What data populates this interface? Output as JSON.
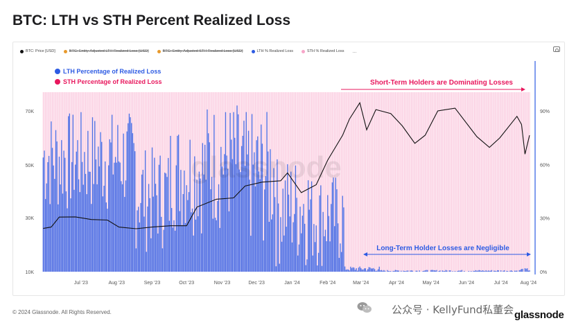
{
  "title": "BTC: LTH vs STH Percent Realized Loss",
  "legend_items": [
    {
      "label": "BTC: Price [USD]",
      "color": "#111111",
      "disabled": false
    },
    {
      "label": "BTC: Entity-Adjusted LTH Realized Loss [USD]",
      "color": "#e89a2c",
      "disabled": true
    },
    {
      "label": "BTC: Entity-Adjusted STH Realized Loss [USD]",
      "color": "#e89a2c",
      "disabled": true
    },
    {
      "label": "LTH % Realized Loss",
      "color": "#2d5be3",
      "disabled": false
    },
    {
      "label": "STH % Realized Loss",
      "color": "#f7a6c9",
      "disabled": false
    }
  ],
  "more_label": "...",
  "inner_legend": [
    {
      "label": "LTH Percentage of Realized Loss",
      "color": "#2d5be3"
    },
    {
      "label": "STH Percentage of Realized Loss",
      "color": "#e8175d"
    }
  ],
  "annotations": {
    "sth": "Short-Term Holders are Dominating Losses",
    "lth": "Long-Term Holder Losses are Negligible"
  },
  "watermark": "glassnode",
  "footer": {
    "copyright": "© 2024 Glassnode. All Rights Reserved.",
    "wechat": "公众号 · KellyFund私董会",
    "logo": "glassnode"
  },
  "chart_data": {
    "type": "bar",
    "x_ticks": [
      "Jul '23",
      "Aug '23",
      "Sep '23",
      "Oct '23",
      "Nov '23",
      "Dec '23",
      "Jan '24",
      "Feb '24",
      "Mar '24",
      "Apr '24",
      "May '24",
      "Jun '24",
      "Jul '24",
      "Aug '24"
    ],
    "y_left_ticks": [
      "10K",
      "30K",
      "50K",
      "70K"
    ],
    "y_left_range": [
      10000,
      80000
    ],
    "y_left_scale": "log",
    "y_right_ticks": [
      "0%",
      "30%",
      "60%",
      "90%"
    ],
    "y_right_range": [
      0,
      100
    ],
    "grid": false,
    "series": [
      {
        "name": "BTC: Price [USD]",
        "type": "line",
        "axis": "left",
        "color": "#111111",
        "points": [
          [
            "2023-06-12",
            26000
          ],
          [
            "2023-06-19",
            26500
          ],
          [
            "2023-06-26",
            30200
          ],
          [
            "2023-07-10",
            30300
          ],
          [
            "2023-07-24",
            29300
          ],
          [
            "2023-08-07",
            29100
          ],
          [
            "2023-08-17",
            26500
          ],
          [
            "2023-09-01",
            25900
          ],
          [
            "2023-09-15",
            26500
          ],
          [
            "2023-10-01",
            27000
          ],
          [
            "2023-10-15",
            27000
          ],
          [
            "2023-10-24",
            34000
          ],
          [
            "2023-11-10",
            37000
          ],
          [
            "2023-11-25",
            37500
          ],
          [
            "2023-12-05",
            42000
          ],
          [
            "2023-12-20",
            43500
          ],
          [
            "2024-01-05",
            44000
          ],
          [
            "2024-01-11",
            47000
          ],
          [
            "2024-01-23",
            39500
          ],
          [
            "2024-02-05",
            42500
          ],
          [
            "2024-02-15",
            51800
          ],
          [
            "2024-02-28",
            61000
          ],
          [
            "2024-03-05",
            67000
          ],
          [
            "2024-03-14",
            73000
          ],
          [
            "2024-03-20",
            63000
          ],
          [
            "2024-03-28",
            70500
          ],
          [
            "2024-04-10",
            69000
          ],
          [
            "2024-04-20",
            64500
          ],
          [
            "2024-05-01",
            58000
          ],
          [
            "2024-05-10",
            61000
          ],
          [
            "2024-05-21",
            70000
          ],
          [
            "2024-06-05",
            71000
          ],
          [
            "2024-06-24",
            60500
          ],
          [
            "2024-07-05",
            56500
          ],
          [
            "2024-07-14",
            60000
          ],
          [
            "2024-07-29",
            68000
          ],
          [
            "2024-08-02",
            65000
          ],
          [
            "2024-08-05",
            54000
          ],
          [
            "2024-08-09",
            61000
          ]
        ]
      },
      {
        "name": "LTH % Realized Loss",
        "type": "bar",
        "axis": "right",
        "color": "#2d5be3",
        "monthly_typical_range_pct": {
          "Jul '23": [
            30,
            90
          ],
          "Aug '23": [
            30,
            90
          ],
          "Sep '23": [
            10,
            70
          ],
          "Oct '23": [
            20,
            85
          ],
          "Nov '23": [
            20,
            95
          ],
          "Dec '23": [
            10,
            90
          ],
          "Jan '24": [
            0,
            65
          ],
          "Feb '24": [
            0,
            55
          ],
          "Mar '24": [
            0,
            3
          ],
          "Apr '24": [
            0,
            1
          ],
          "May '24": [
            0,
            1
          ],
          "Jun '24": [
            0,
            1
          ],
          "Jul '24": [
            0,
            1
          ],
          "Aug '24": [
            0,
            2
          ]
        }
      },
      {
        "name": "STH % Realized Loss",
        "type": "bar",
        "axis": "right",
        "color": "#f7a6c9",
        "note": "complement of LTH % (stacked to 100%)"
      }
    ]
  }
}
